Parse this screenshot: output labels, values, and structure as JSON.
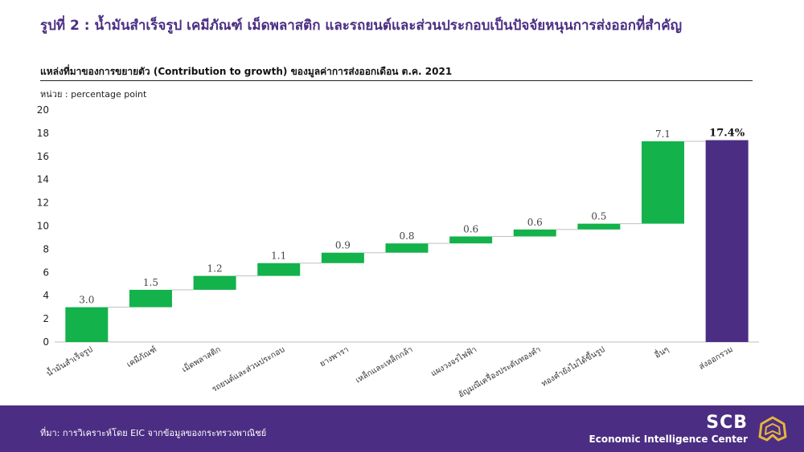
{
  "figure_title": "รูปที่ 2 : น้ำมันสำเร็จรูป เคมีภัณฑ์ เม็ดพลาสติก และรถยนต์และส่วนประกอบเป็นปัจจัยหนุนการส่งออกที่สำคัญ",
  "chart_title": "แหล่งที่มาของการขยายตัว (Contribution to growth) ของมูลค่าการส่งออกเดือน ต.ค. 2021",
  "unit_label": "หน่วย : percentage point",
  "footer": {
    "source": "ที่มา: การวิเคราะห์โดย EIC จากข้อมูลของกระทรวงพาณิชย์",
    "brand_name": "SCB",
    "brand_sub": "Economic Intelligence Center"
  },
  "colors": {
    "positive": "#13B24B",
    "total": "#4B2E83",
    "connector": "#BFBFBF",
    "axis": "#BFBFBF"
  },
  "chart_data": {
    "type": "bar",
    "subtype": "waterfall",
    "categories": [
      "น้ำมันสำเร็จรูป",
      "เคมีภัณฑ์",
      "เม็ดพลาสติก",
      "รถยนต์และส่วนประกอบ",
      "ยางพารา",
      "เหล็กและเหล็กกล้า",
      "แผงวงจรไฟฟ้า",
      "อัญมณีเครื่องประดับทองคำ",
      "ทองคำยังไม่ได้ขึ้นรูป",
      "อื่นๆ",
      "ส่งออกรวม"
    ],
    "values": [
      3.0,
      1.5,
      1.2,
      1.1,
      0.9,
      0.8,
      0.6,
      0.6,
      0.5,
      7.1,
      17.4
    ],
    "value_labels": [
      "3.0",
      "1.5",
      "1.2",
      "1.1",
      "0.9",
      "0.8",
      "0.6",
      "0.6",
      "0.5",
      "7.1",
      "17.4%"
    ],
    "ylim": [
      0,
      20
    ],
    "yticks": [
      "0",
      "2",
      "4",
      "6",
      "8",
      "10",
      "12",
      "14",
      "16",
      "18",
      "20"
    ],
    "grid": false,
    "legend": "none"
  }
}
